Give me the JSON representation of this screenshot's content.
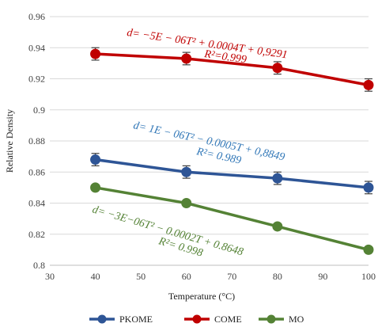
{
  "chart_data": {
    "type": "line",
    "xlabel": "Temperature (°C)",
    "ylabel": "Relative Density",
    "xlim": [
      30,
      100
    ],
    "ylim": [
      0.8,
      0.96
    ],
    "x_ticks": [
      "30",
      "40",
      "50",
      "60",
      "70",
      "80",
      "90",
      "100"
    ],
    "y_ticks": [
      "0.8",
      "0.82",
      "0.84",
      "0.86",
      "0.88",
      "0.9",
      "0.92",
      "0.94",
      "0.96"
    ],
    "grid": "horizontal",
    "legend_position": "bottom",
    "x": [
      40,
      60,
      80,
      100
    ],
    "series": [
      {
        "name": "PKOME",
        "color": "#2e5596",
        "values": [
          0.868,
          0.86,
          0.856,
          0.85
        ],
        "error": 0.004,
        "marker": "circle"
      },
      {
        "name": "COME",
        "color": "#c00000",
        "values": [
          0.936,
          0.933,
          0.927,
          0.916
        ],
        "error": 0.004,
        "marker": "circle"
      },
      {
        "name": "MO",
        "color": "#548235",
        "values": [
          0.85,
          0.84,
          0.825,
          0.81
        ],
        "error": 0.0,
        "marker": "circle"
      }
    ],
    "annotations": [
      {
        "series": "COME",
        "equation": "d= −5E − 06T² + 0.0004T + 0,9291",
        "r2": "R²=0.999",
        "color": "#c00000"
      },
      {
        "series": "PKOME",
        "equation": "d= 1E − 06T² − 0.0005T + 0,8849",
        "r2": "R²= 0.989",
        "color": "#2e75b6"
      },
      {
        "series": "MO",
        "equation": "d= −3E−06T² − 0.0002T + 0.8648",
        "r2": "R²= 0.998",
        "color": "#548235"
      }
    ]
  }
}
